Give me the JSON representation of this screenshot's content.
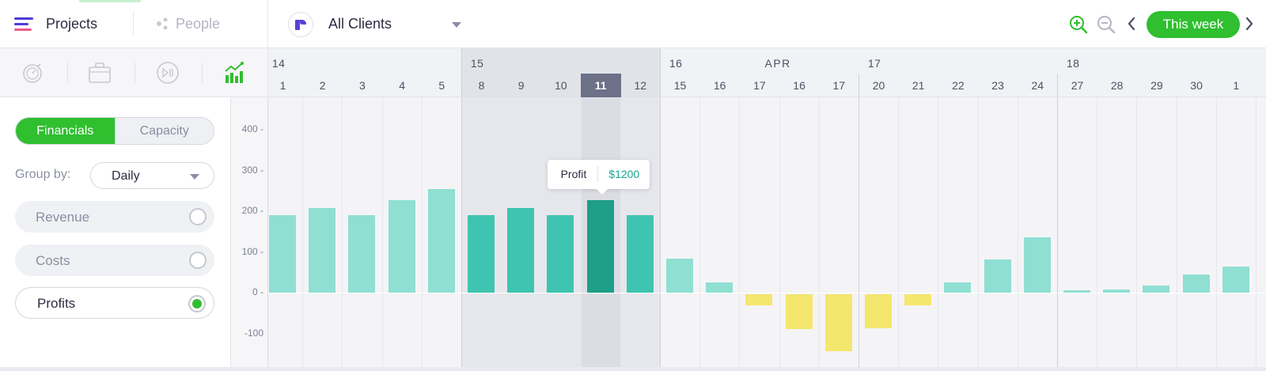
{
  "nav": {
    "projects_label": "Projects",
    "people_label": "People",
    "client_filter": "All Clients",
    "this_week_label": "This week"
  },
  "icons": {
    "menu": "hamburger-menu-icon",
    "people": "people-icon",
    "client_logo": "client-logo-icon",
    "zoom_in": "zoom-in-icon",
    "zoom_out": "zoom-out-icon",
    "prev": "chevron-left-icon",
    "next": "chevron-right-icon",
    "view_tabs": [
      "stopwatch-icon",
      "briefcase-icon",
      "play-pause-icon",
      "chart-icon"
    ],
    "active_view": "chart-icon"
  },
  "colors": {
    "accent_green": "#2fbf2f",
    "bar_light": "#8fdfd3",
    "bar_week": "#3ec4b0",
    "bar_selected": "#1f9e88",
    "bar_negative": "#f5e66e"
  },
  "sidebar": {
    "tabs": [
      {
        "label": "Financials",
        "active": true
      },
      {
        "label": "Capacity",
        "active": false
      }
    ],
    "group_by_label": "Group by:",
    "group_by_value": "Daily",
    "metrics": [
      {
        "label": "Revenue",
        "selected": false
      },
      {
        "label": "Costs",
        "selected": false
      },
      {
        "label": "Profits",
        "selected": true
      }
    ]
  },
  "timeline": {
    "month_label": "APR",
    "weeks": [
      "14",
      "15",
      "16",
      "17",
      "18"
    ],
    "days": [
      "1",
      "2",
      "3",
      "4",
      "5",
      "8",
      "9",
      "10",
      "11",
      "12",
      "15",
      "16",
      "17",
      "16",
      "17",
      "20",
      "21",
      "22",
      "23",
      "24",
      "27",
      "28",
      "29",
      "30",
      "1"
    ],
    "selected_day": "11",
    "tooltip": {
      "label": "Profit",
      "value": "$1200"
    }
  },
  "chart_data": {
    "type": "bar",
    "ylabel": "",
    "yticks": [
      "400 -",
      "300 -",
      "200 -",
      "100 -",
      "0 -",
      "-100"
    ],
    "ylim": [
      -140,
      420
    ],
    "grid": true,
    "categories": [
      "1",
      "2",
      "3",
      "4",
      "5",
      "8",
      "9",
      "10",
      "11",
      "12",
      "15",
      "16",
      "17",
      "16",
      "17",
      "20",
      "21",
      "22",
      "23",
      "24",
      "27",
      "28",
      "29",
      "30",
      "1"
    ],
    "series": [
      {
        "values": [
          190,
          208,
          190,
          228,
          254,
          190,
          208,
          190,
          228,
          190,
          84,
          26,
          -28,
          -86,
          -140,
          -84,
          -28,
          26,
          82,
          136,
          6,
          8,
          18,
          44,
          64
        ]
      }
    ]
  }
}
